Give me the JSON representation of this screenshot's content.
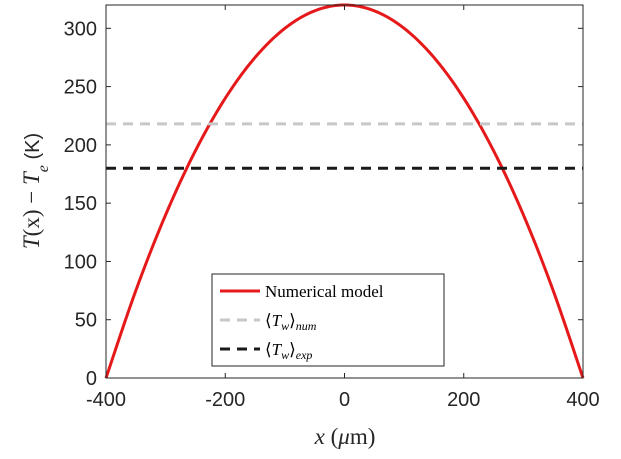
{
  "chart_data": {
    "type": "line",
    "xlim": [
      -400,
      400
    ],
    "ylim": [
      0,
      320
    ],
    "xticks": [
      -400,
      -200,
      0,
      200,
      400
    ],
    "yticks": [
      0,
      50,
      100,
      150,
      200,
      250,
      300
    ],
    "xtick_labels": [
      "-400",
      "-200",
      "0",
      "200",
      "400"
    ],
    "ytick_labels": [
      "0",
      "50",
      "100",
      "150",
      "200",
      "250",
      "300"
    ],
    "xlabel": {
      "var": "x",
      "open": " (",
      "mu": "μ",
      "unit": "m)"
    },
    "ylabel": {
      "func": "T",
      "arg": "(x)",
      "minus": " − ",
      "base": "T",
      "sub": "e",
      "unit": " (K)"
    },
    "grid": false,
    "legend_position": "lower-center",
    "series": [
      {
        "name": "Numerical model",
        "style": "solid",
        "color": "#e6191a",
        "x": [
          -400,
          -350,
          -300,
          -250,
          -200,
          -150,
          -100,
          -50,
          0,
          50,
          100,
          150,
          200,
          250,
          300,
          350,
          400
        ],
        "y": [
          0,
          75,
          140,
          195,
          240,
          275,
          300,
          315,
          320,
          315,
          300,
          275,
          240,
          195,
          140,
          75,
          0
        ]
      },
      {
        "name": "⟨T_w⟩_num",
        "style": "dashed",
        "color": "#c8c8c8",
        "y": 218
      },
      {
        "name": "⟨T_w⟩_exp",
        "style": "dashed",
        "color": "#1a1a1a",
        "y": 180
      }
    ],
    "legend": [
      {
        "parts": [
          {
            "t": "Numerical model",
            "it": false
          }
        ]
      },
      {
        "parts": [
          {
            "t": "⟨",
            "it": false
          },
          {
            "t": "T",
            "it": true
          },
          {
            "t": "w",
            "it": true,
            "sub": true
          },
          {
            "t": "⟩",
            "it": false
          },
          {
            "t": "num",
            "it": true,
            "sub": true
          }
        ]
      },
      {
        "parts": [
          {
            "t": "⟨",
            "it": false
          },
          {
            "t": "T",
            "it": true
          },
          {
            "t": "w",
            "it": true,
            "sub": true
          },
          {
            "t": "⟩",
            "it": false
          },
          {
            "t": "exp",
            "it": true,
            "sub": true
          }
        ]
      }
    ]
  }
}
